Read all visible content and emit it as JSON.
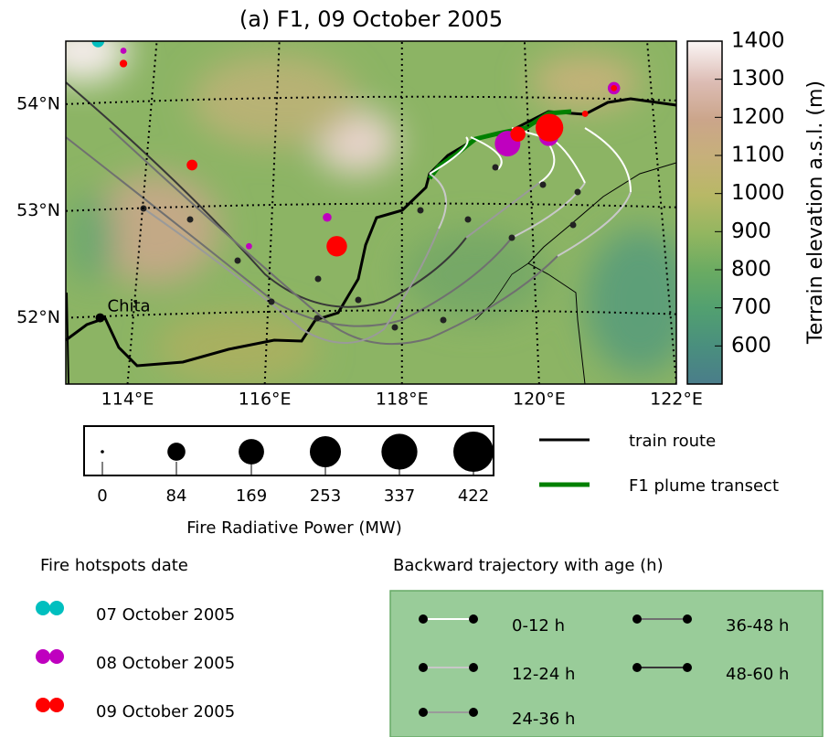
{
  "title": "(a) F1, 09 October 2005",
  "map": {
    "xlim": [
      113.1,
      122.0
    ],
    "ylim": [
      51.38,
      54.59
    ],
    "lon_ticks": [
      {
        "value": 114,
        "label": "114°E"
      },
      {
        "value": 116,
        "label": "116°E"
      },
      {
        "value": 118,
        "label": "118°E"
      },
      {
        "value": 120,
        "label": "120°E"
      },
      {
        "value": 122,
        "label": "122°E"
      }
    ],
    "lat_ticks": [
      {
        "value": 52,
        "label": "52°N"
      },
      {
        "value": 53,
        "label": "53°N"
      },
      {
        "value": 54,
        "label": "54°N"
      }
    ],
    "city": {
      "name": "Chita",
      "lon": 113.6,
      "lat": 52.0
    },
    "fires": [
      {
        "lon": 113.57,
        "lat": 54.59,
        "frp": 40,
        "date": "07 October 2005"
      },
      {
        "lon": 113.94,
        "lat": 54.5,
        "frp": 10,
        "date": "08 October 2005"
      },
      {
        "lon": 113.94,
        "lat": 54.38,
        "frp": 15,
        "date": "09 October 2005"
      },
      {
        "lon": 114.94,
        "lat": 53.43,
        "frp": 30,
        "date": "09 October 2005"
      },
      {
        "lon": 116.91,
        "lat": 52.94,
        "frp": 20,
        "date": "08 October 2005"
      },
      {
        "lon": 115.77,
        "lat": 52.67,
        "frp": 10,
        "date": "08 October 2005"
      },
      {
        "lon": 117.05,
        "lat": 52.67,
        "frp": 110,
        "date": "09 October 2005"
      },
      {
        "lon": 119.54,
        "lat": 53.63,
        "frp": 170,
        "date": "08 October 2005"
      },
      {
        "lon": 120.14,
        "lat": 53.7,
        "frp": 100,
        "date": "08 October 2005"
      },
      {
        "lon": 119.69,
        "lat": 53.72,
        "frp": 60,
        "date": "09 October 2005"
      },
      {
        "lon": 120.15,
        "lat": 53.78,
        "frp": 200,
        "date": "09 October 2005"
      },
      {
        "lon": 120.67,
        "lat": 53.91,
        "frp": 10,
        "date": "09 October 2005"
      },
      {
        "lon": 121.09,
        "lat": 54.15,
        "frp": 40,
        "date": "08 October 2005"
      },
      {
        "lon": 121.09,
        "lat": 54.15,
        "frp": 10,
        "date": "09 October 2005"
      }
    ]
  },
  "colorbar": {
    "label": "Terrain elevation a.s.l. (m)",
    "lim": [
      500,
      1400
    ],
    "ticks": [
      600,
      700,
      800,
      900,
      1000,
      1100,
      1200,
      1300,
      1400
    ]
  },
  "frp_legend": {
    "label": "Fire Radiative Power (MW)",
    "values": [
      0,
      84,
      169,
      253,
      337,
      422
    ]
  },
  "line_legend": [
    {
      "label": "train route",
      "color": "#000000"
    },
    {
      "label": "F1 plume transect",
      "color": "#008000"
    }
  ],
  "date_legend": {
    "title": "Fire hotspots date",
    "entries": [
      {
        "label": "07 October 2005",
        "color": "#00bfbf"
      },
      {
        "label": "08 October 2005",
        "color": "#bf00bf"
      },
      {
        "label": "09 October 2005",
        "color": "#ff0000"
      }
    ]
  },
  "trajectory_legend": {
    "title": "Backward trajectory with age (h)",
    "entries": [
      {
        "label": "0-12 h",
        "color": "#ffffff"
      },
      {
        "label": "12-24 h",
        "color": "#c8c8c8"
      },
      {
        "label": "24-36 h",
        "color": "#9a9a9a"
      },
      {
        "label": "36-48 h",
        "color": "#707070"
      },
      {
        "label": "48-60 h",
        "color": "#383838"
      }
    ]
  }
}
